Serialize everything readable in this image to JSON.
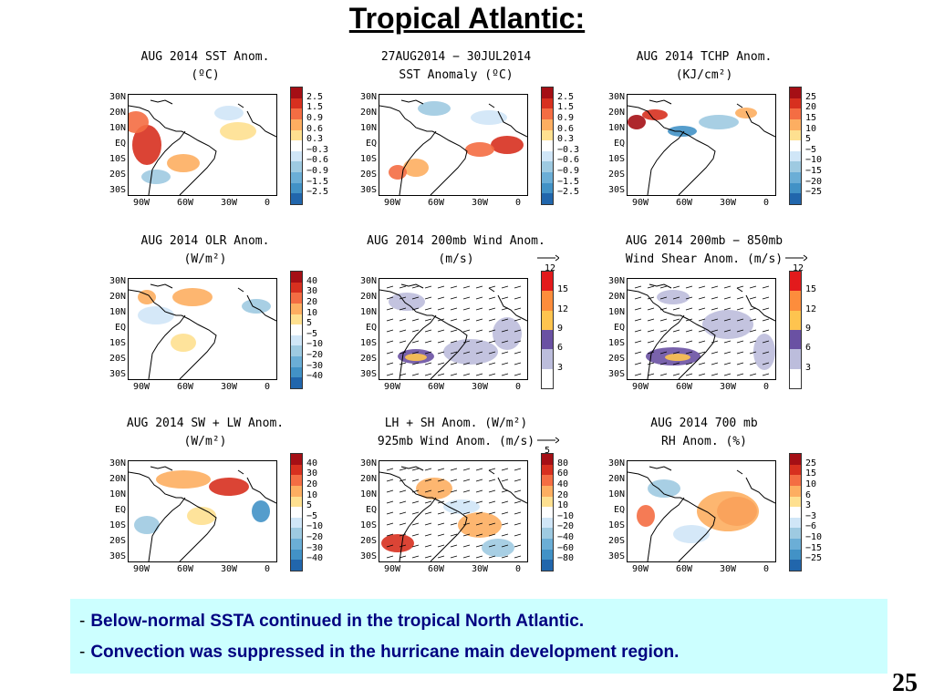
{
  "slide": {
    "title": "Tropical Atlantic:",
    "page_number": "25"
  },
  "lat_labels": [
    "30N",
    "20N",
    "10N",
    "EQ",
    "10S",
    "20S",
    "30S"
  ],
  "lon_labels": [
    "90W",
    "60W",
    "30W",
    "0"
  ],
  "panels": [
    {
      "title1": "AUG 2014 SST Anom.",
      "title2": "(ºC)",
      "legend": [
        "2.5",
        "1.5",
        "0.9",
        "0.6",
        "0.3",
        "−0.3",
        "−0.6",
        "−0.9",
        "−1.5",
        "−2.5"
      ],
      "colors": [
        "#a50f15",
        "#d7301f",
        "#f46d43",
        "#fdae61",
        "#fee090",
        "#ffffff",
        "#d0e6f7",
        "#9ecae1",
        "#6baed6",
        "#4292c6",
        "#2166ac"
      ],
      "vector_ref": ""
    },
    {
      "title1": "27AUG2014 − 30JUL2014",
      "title2": "SST Anomaly (ºC)",
      "legend": [
        "2.5",
        "1.5",
        "0.9",
        "0.6",
        "0.3",
        "−0.3",
        "−0.6",
        "−0.9",
        "−1.5",
        "−2.5"
      ],
      "colors": [
        "#a50f15",
        "#d7301f",
        "#f46d43",
        "#fdae61",
        "#fee090",
        "#ffffff",
        "#d0e6f7",
        "#9ecae1",
        "#6baed6",
        "#4292c6",
        "#2166ac"
      ],
      "vector_ref": ""
    },
    {
      "title1": "AUG 2014 TCHP Anom.",
      "title2": "(KJ/cm²)",
      "legend": [
        "25",
        "20",
        "15",
        "10",
        "5",
        "−5",
        "−10",
        "−15",
        "−20",
        "−25"
      ],
      "colors": [
        "#a50f15",
        "#d7301f",
        "#f46d43",
        "#fdae61",
        "#fee090",
        "#ffffff",
        "#d0e6f7",
        "#9ecae1",
        "#6baed6",
        "#4292c6",
        "#2166ac"
      ],
      "vector_ref": ""
    },
    {
      "title1": "AUG 2014 OLR Anom.",
      "title2": "(W/m²)",
      "legend": [
        "40",
        "30",
        "20",
        "10",
        "5",
        "−5",
        "−10",
        "−20",
        "−30",
        "−40"
      ],
      "colors": [
        "#a50f15",
        "#d7301f",
        "#f46d43",
        "#fdae61",
        "#fee090",
        "#ffffff",
        "#d0e6f7",
        "#9ecae1",
        "#6baed6",
        "#4292c6",
        "#2166ac"
      ],
      "vector_ref": ""
    },
    {
      "title1": "AUG 2014 200mb Wind Anom.",
      "title2": "(m/s)",
      "legend": [
        "15",
        "12",
        "9",
        "6",
        "3"
      ],
      "colors": [
        "#e31a1c",
        "#fd8d3c",
        "#fec44f",
        "#6a51a3",
        "#bcbddc",
        "#ffffff"
      ],
      "vector_ref": "12"
    },
    {
      "title1": "AUG 2014 200mb − 850mb",
      "title2": "Wind Shear Anom. (m/s)",
      "legend": [
        "15",
        "12",
        "9",
        "6",
        "3"
      ],
      "colors": [
        "#e31a1c",
        "#fd8d3c",
        "#fec44f",
        "#6a51a3",
        "#bcbddc",
        "#ffffff"
      ],
      "vector_ref": "12"
    },
    {
      "title1": "AUG 2014 SW + LW Anom.",
      "title2": "(W/m²)",
      "legend": [
        "40",
        "30",
        "20",
        "10",
        "5",
        "−5",
        "−10",
        "−20",
        "−30",
        "−40"
      ],
      "colors": [
        "#a50f15",
        "#d7301f",
        "#f46d43",
        "#fdae61",
        "#fee090",
        "#ffffff",
        "#d0e6f7",
        "#9ecae1",
        "#6baed6",
        "#4292c6",
        "#2166ac"
      ],
      "vector_ref": ""
    },
    {
      "title1": "LH + SH Anom. (W/m²)",
      "title2": "925mb Wind Anom. (m/s)",
      "legend": [
        "80",
        "60",
        "40",
        "20",
        "10",
        "−10",
        "−20",
        "−40",
        "−60",
        "−80"
      ],
      "colors": [
        "#a50f15",
        "#d7301f",
        "#f46d43",
        "#fdae61",
        "#fee090",
        "#ffffff",
        "#d0e6f7",
        "#9ecae1",
        "#6baed6",
        "#4292c6",
        "#2166ac"
      ],
      "vector_ref": "5"
    },
    {
      "title1": "AUG 2014 700 mb",
      "title2": "RH Anom. (%)",
      "legend": [
        "25",
        "15",
        "10",
        "6",
        "3",
        "−3",
        "−6",
        "−10",
        "−15",
        "−25"
      ],
      "colors": [
        "#a50f15",
        "#d7301f",
        "#f46d43",
        "#fdae61",
        "#fee090",
        "#ffffff",
        "#d0e6f7",
        "#9ecae1",
        "#6baed6",
        "#4292c6",
        "#2166ac"
      ],
      "vector_ref": ""
    }
  ],
  "notes": [
    {
      "dash": "-",
      "text": "Below-normal SSTA continued in the tropical North Atlantic."
    },
    {
      "dash": "-",
      "text": "Convection was suppressed in the hurricane main development region."
    }
  ]
}
